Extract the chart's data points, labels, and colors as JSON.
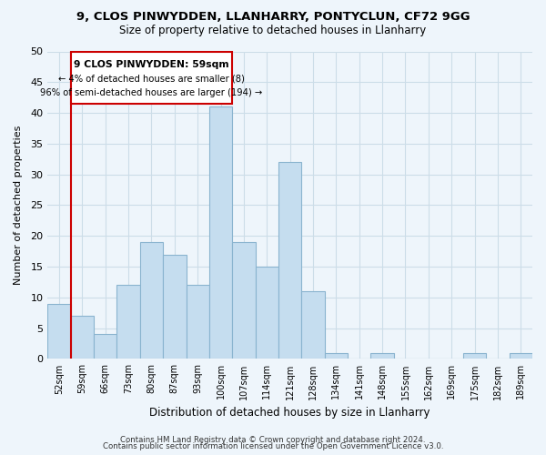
{
  "title": "9, CLOS PINWYDDEN, LLANHARRY, PONTYCLUN, CF72 9GG",
  "subtitle": "Size of property relative to detached houses in Llanharry",
  "xlabel": "Distribution of detached houses by size in Llanharry",
  "ylabel": "Number of detached properties",
  "bar_color": "#c5ddef",
  "bar_edge_color": "#8ab4cf",
  "bins": [
    "52sqm",
    "59sqm",
    "66sqm",
    "73sqm",
    "80sqm",
    "87sqm",
    "93sqm",
    "100sqm",
    "107sqm",
    "114sqm",
    "121sqm",
    "128sqm",
    "134sqm",
    "141sqm",
    "148sqm",
    "155sqm",
    "162sqm",
    "169sqm",
    "175sqm",
    "182sqm",
    "189sqm"
  ],
  "values": [
    9,
    7,
    4,
    12,
    19,
    17,
    12,
    41,
    19,
    15,
    32,
    11,
    1,
    0,
    1,
    0,
    0,
    0,
    1,
    0,
    1
  ],
  "ylim": [
    0,
    50
  ],
  "yticks": [
    0,
    5,
    10,
    15,
    20,
    25,
    30,
    35,
    40,
    45,
    50
  ],
  "annotation_title": "9 CLOS PINWYDDEN: 59sqm",
  "annotation_line1": "← 4% of detached houses are smaller (8)",
  "annotation_line2": "96% of semi-detached houses are larger (194) →",
  "vline_x_index": 1,
  "box_color": "#ffffff",
  "box_edge_color": "#cc0000",
  "vline_color": "#cc0000",
  "grid_color": "#ccdde8",
  "background_color": "#eef5fb",
  "footer_line1": "Contains HM Land Registry data © Crown copyright and database right 2024.",
  "footer_line2": "Contains public sector information licensed under the Open Government Licence v3.0."
}
